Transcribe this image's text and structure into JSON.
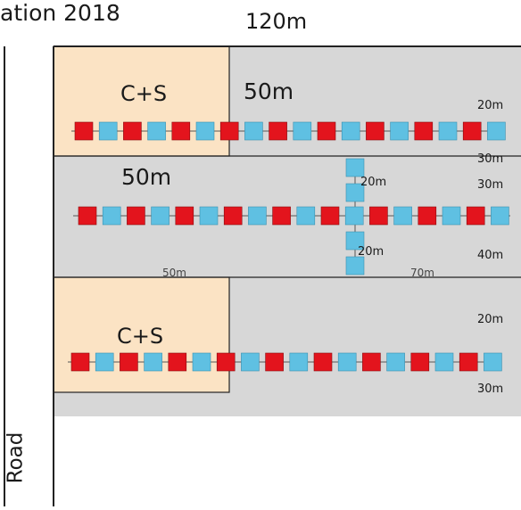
{
  "title_fragment": "ation 2018",
  "dimensions": {
    "total_width": "120m",
    "block1_right": "50m",
    "block2_left": "50m",
    "bottom_left": "50m",
    "bottom_right": "70m",
    "row1_above": "20m",
    "row1_below": "30m",
    "row2_above": "30m",
    "row2_below": "40m",
    "cross_upper": "20m",
    "cross_lower": "20m",
    "row3_above": "20m",
    "row3_below": "30m"
  },
  "zones": {
    "upper_label": "C+S",
    "lower_label": "C+S"
  },
  "road_label": "Road",
  "colors": {
    "field_gray": "#d7d7d7",
    "cs_zone": "#fbe3c4",
    "red_plot": "#e3141d",
    "blue_plot": "#5fc0e2",
    "line": "#222222"
  },
  "rows": [
    {
      "id": "row1",
      "pattern": [
        "R",
        "B",
        "R",
        "B",
        "R",
        "B",
        "R",
        "B",
        "R",
        "B",
        "R",
        "B",
        "R",
        "B",
        "R",
        "B",
        "R",
        "B"
      ]
    },
    {
      "id": "row2",
      "pattern": [
        "R",
        "B",
        "R",
        "B",
        "R",
        "B",
        "R",
        "B",
        "R",
        "B",
        "R",
        "B",
        "R",
        "B",
        "R",
        "B",
        "R",
        "B"
      ]
    },
    {
      "id": "row3",
      "pattern": [
        "R",
        "B",
        "R",
        "B",
        "R",
        "B",
        "R",
        "B",
        "R",
        "B",
        "R",
        "B",
        "R",
        "B",
        "R",
        "B",
        "R",
        "B"
      ]
    }
  ]
}
